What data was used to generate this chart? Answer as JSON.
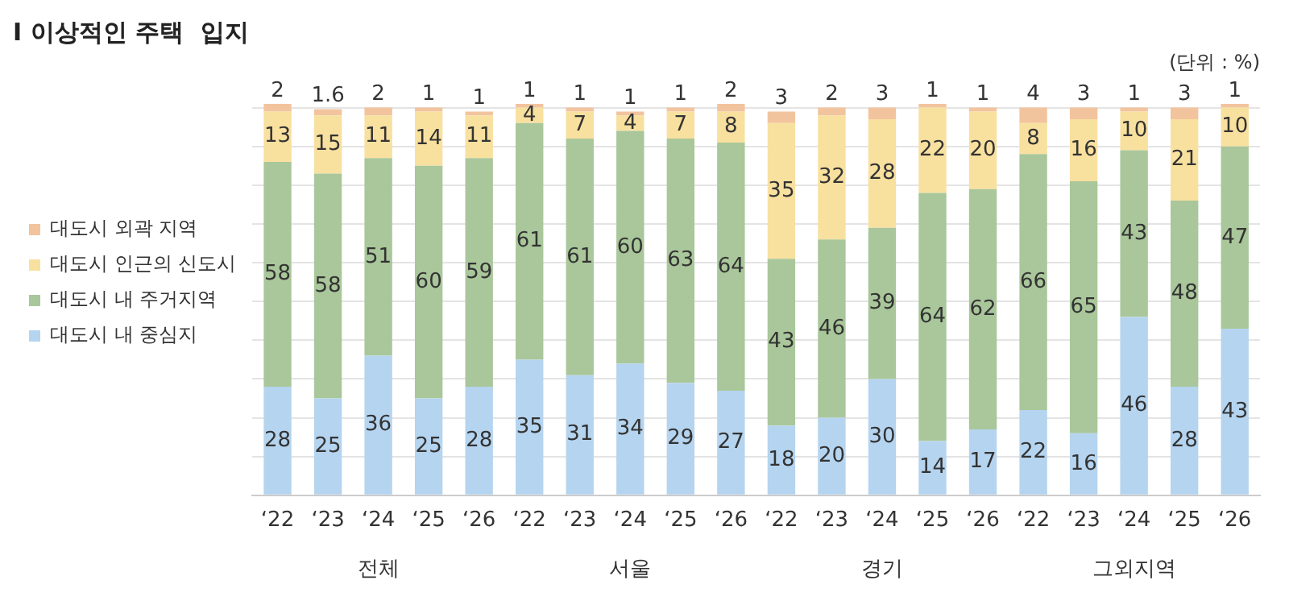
{
  "chart_data": {
    "type": "bar",
    "title": "I 이상적인 주택  입지",
    "subtitle": "(단위 : %)",
    "categories": [
      "‘22",
      "‘23",
      "‘24",
      "‘25",
      "‘26",
      "‘22",
      "‘23",
      "‘24",
      "‘25",
      "‘26",
      "‘22",
      "‘23",
      "‘24",
      "‘25",
      "‘26",
      "‘22",
      "‘23",
      "‘24",
      "‘25",
      "‘26"
    ],
    "annotations": [
      "전체",
      "서울",
      "경기",
      "그외지역"
    ],
    "stacked": true,
    "series": [
      {
        "name": "대도시 내 중심지",
        "color": "#b5d4ef",
        "values": [
          28,
          25,
          36,
          25,
          28,
          35,
          31,
          34,
          29,
          27,
          18,
          20,
          30,
          14,
          17,
          22,
          16,
          46,
          28,
          43
        ]
      },
      {
        "name": "대도시 내 주거지역",
        "color": "#a9c79a",
        "values": [
          58,
          58,
          51,
          60,
          59,
          61,
          61,
          60,
          63,
          64,
          43,
          46,
          39,
          64,
          62,
          66,
          65,
          43,
          48,
          47
        ]
      },
      {
        "name": "대도시 인근의 신도시",
        "color": "#f8e09f",
        "values": [
          13,
          15,
          11,
          14,
          11,
          4,
          7,
          4,
          7,
          8,
          35,
          32,
          28,
          22,
          20,
          8,
          16,
          10,
          21,
          10
        ]
      },
      {
        "name": "대도시 외곽 지역",
        "color": "#f2c49e",
        "values": [
          2,
          1.6,
          2,
          1,
          1,
          1,
          1,
          1,
          1,
          2,
          3,
          2,
          3,
          1,
          1,
          4,
          3,
          1,
          3,
          1
        ]
      }
    ],
    "ylim": [
      0,
      101
    ],
    "yticks": [
      {
        "value": 0,
        "label": null
      },
      {
        "value": 10,
        "label": null
      },
      {
        "value": 20,
        "label": null
      },
      {
        "value": 30,
        "label": null
      },
      {
        "value": 40,
        "label": null
      },
      {
        "value": 50,
        "label": null
      },
      {
        "value": 60,
        "label": null
      },
      {
        "value": 70,
        "label": null
      },
      {
        "value": 80,
        "label": null
      },
      {
        "value": 90,
        "label": null
      },
      {
        "value": 100,
        "label": null
      }
    ],
    "tick_labels": "x",
    "grid": "y",
    "legend": "left",
    "data_labels": true
  }
}
